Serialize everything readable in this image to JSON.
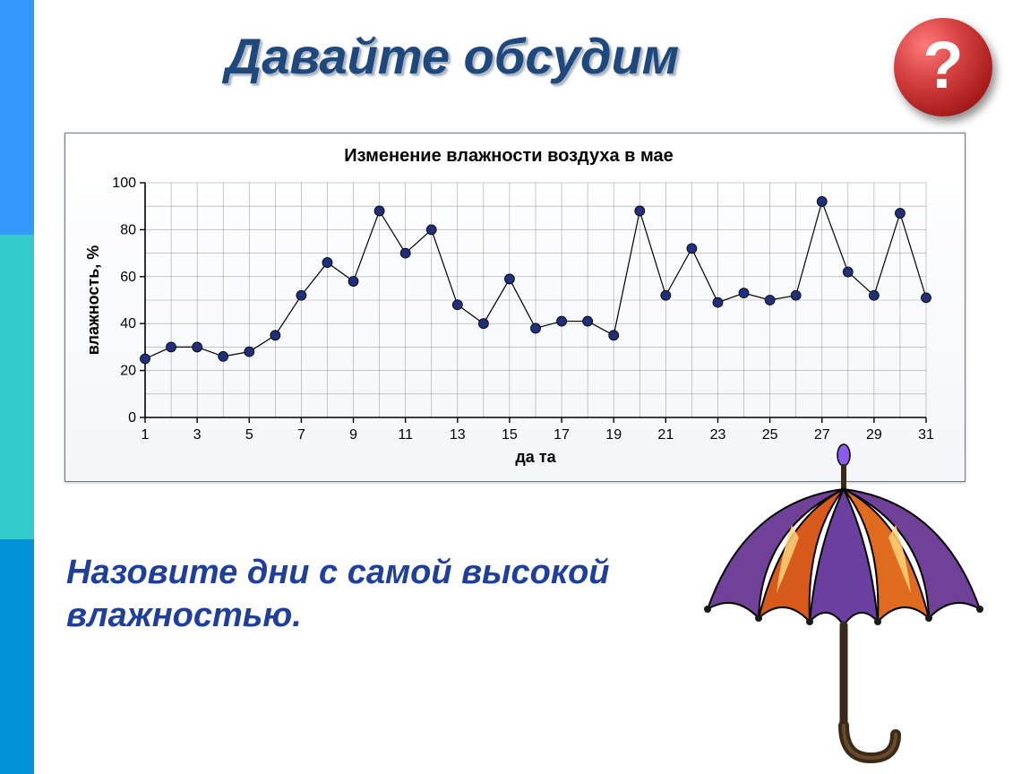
{
  "title": "Давайте обсудим",
  "badge_symbol": "?",
  "sidebar_colors": {
    "c1": "#3399ff",
    "c2": "#33cccc",
    "c3": "#0091d6"
  },
  "title_color": "#1f497d",
  "question_text": "Назовите дни с самой высокой влажностью.",
  "question_color": "#1f3f9a",
  "badge": {
    "gradient_top": "#ff7a7a",
    "gradient_bot": "#7a0e0e",
    "text_color": "#ffffff"
  },
  "chart": {
    "type": "line-scatter",
    "title": "Изменение влажности воздуха в мае",
    "title_fontsize": 20,
    "xlabel": "да та",
    "ylabel": "влажность, %",
    "label_fontsize": 18,
    "tick_fontsize": 16,
    "background_color": "#ffffff",
    "grid_color": "#808080",
    "grid_stroke": 0.6,
    "axis_color": "#000000",
    "line_color": "#000000",
    "line_width": 1.2,
    "marker_color": "#1f2f7a",
    "marker_stroke": "#000000",
    "marker_radius": 5.5,
    "x_values": [
      1,
      2,
      3,
      4,
      5,
      6,
      7,
      8,
      9,
      10,
      11,
      12,
      13,
      14,
      15,
      16,
      17,
      18,
      19,
      20,
      21,
      22,
      23,
      24,
      25,
      26,
      27,
      28,
      29,
      30,
      31
    ],
    "y_values": [
      25,
      30,
      30,
      26,
      28,
      35,
      52,
      66,
      58,
      88,
      70,
      80,
      48,
      40,
      59,
      38,
      41,
      41,
      35,
      88,
      52,
      72,
      49,
      53,
      50,
      52,
      92,
      62,
      52,
      87,
      51
    ],
    "x_ticks": [
      1,
      3,
      5,
      7,
      9,
      11,
      13,
      15,
      17,
      19,
      21,
      23,
      25,
      27,
      29,
      31
    ],
    "y_ticks": [
      0,
      20,
      40,
      60,
      80,
      100
    ],
    "xlim": [
      1,
      31
    ],
    "ylim": [
      0,
      100
    ]
  },
  "umbrella": {
    "panel_colors": [
      "#6b3fa0",
      "#d85a1a",
      "#704199",
      "#e06a1e"
    ],
    "highlight": "#ffd27a",
    "handle_color": "#3a2a18",
    "rib_color": "#1a1a1a",
    "tip_color": "#8a5df0"
  }
}
